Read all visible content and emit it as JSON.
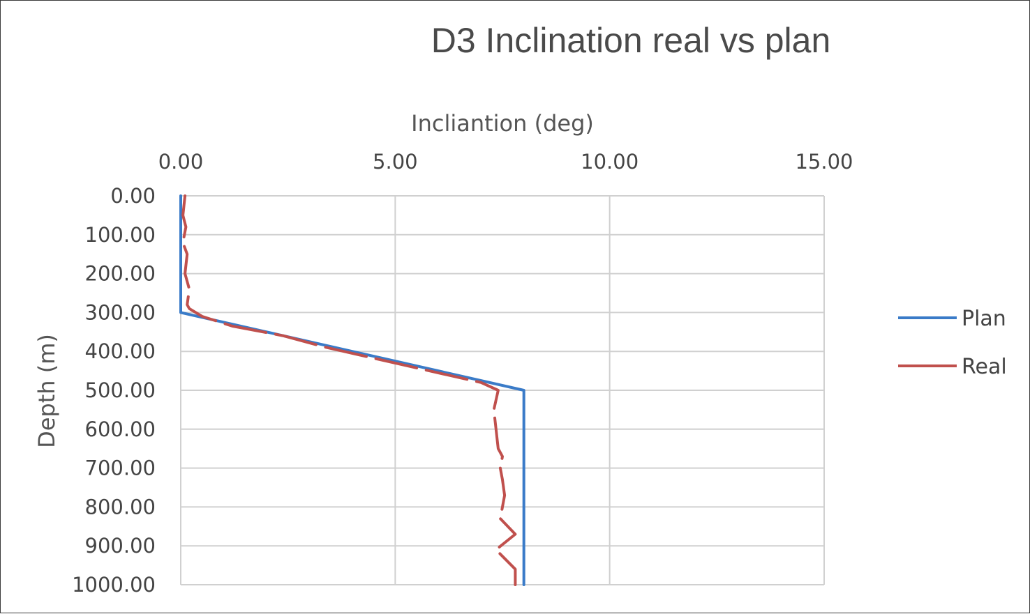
{
  "chart_data": {
    "type": "line",
    "title": "D3 Inclination real vs plan",
    "xlabel": "Incliantion (deg)",
    "ylabel": "Depth (m)",
    "xlim": [
      0,
      15
    ],
    "ylim": [
      0,
      1000
    ],
    "x_axis_position": "top",
    "y_axis_reversed": true,
    "grid": true,
    "x_ticks": [
      "0.00",
      "5.00",
      "10.00",
      "15.00"
    ],
    "y_ticks": [
      "0.00",
      "100.00",
      "200.00",
      "300.00",
      "400.00",
      "500.00",
      "600.00",
      "700.00",
      "800.00",
      "900.00",
      "1000.00"
    ],
    "legend_position": "right",
    "series": [
      {
        "name": "Plan",
        "color": "#3a7bc8",
        "dash": "solid",
        "x": [
          0,
          0,
          8,
          8
        ],
        "y": [
          0,
          300,
          500,
          1000
        ]
      },
      {
        "name": "Real",
        "color": "#c0504d",
        "dash": "dashed",
        "x": [
          0.1,
          0.05,
          0.12,
          0.05,
          0.15,
          0.1,
          0.2,
          0.15,
          0.2,
          0.5,
          1.2,
          2.4,
          3.4,
          5.0,
          6.2,
          7.0,
          7.4,
          7.3,
          7.35,
          7.4,
          7.5,
          7.45,
          7.5,
          7.55,
          7.45,
          7.8,
          7.35,
          7.8,
          7.8
        ],
        "y": [
          0,
          50,
          80,
          120,
          150,
          200,
          240,
          280,
          290,
          310,
          335,
          360,
          390,
          430,
          460,
          480,
          500,
          550,
          600,
          650,
          670,
          700,
          730,
          770,
          830,
          870,
          910,
          960,
          1000
        ]
      }
    ]
  }
}
